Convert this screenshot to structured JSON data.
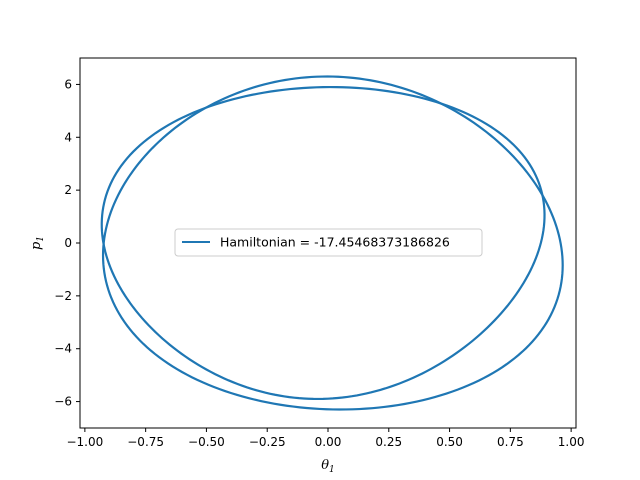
{
  "chart_data": {
    "type": "line",
    "xlabel": "θ",
    "xlabel_sub": "1",
    "ylabel": "p",
    "ylabel_sub": "1",
    "xlim": [
      -1.02,
      1.02
    ],
    "ylim": [
      -7.0,
      7.0
    ],
    "xticks": [
      -1.0,
      -0.75,
      -0.5,
      -0.25,
      0.0,
      0.25,
      0.5,
      0.75,
      1.0
    ],
    "xtick_labels": [
      "−1.00",
      "−0.75",
      "−0.50",
      "−0.25",
      "0.00",
      "0.25",
      "0.50",
      "0.75",
      "1.00"
    ],
    "yticks": [
      -6,
      -4,
      -2,
      0,
      2,
      4,
      6
    ],
    "ytick_labels": [
      "−6",
      "−4",
      "−2",
      "0",
      "2",
      "4",
      "6"
    ],
    "legend_position": "center",
    "series": [
      {
        "name": "Hamiltonian = -17.45468373186826",
        "color": "#1f77b4",
        "loops": [
          {
            "x_center": 0.02,
            "x_radius": 0.94,
            "x_skew": -0.05,
            "y_radius": 6.3,
            "phase_shift": -0.03
          },
          {
            "x_center": -0.02,
            "x_radius": 0.9,
            "x_skew": 0.07,
            "y_radius": 5.9,
            "phase_shift": 0.03
          }
        ]
      }
    ]
  }
}
